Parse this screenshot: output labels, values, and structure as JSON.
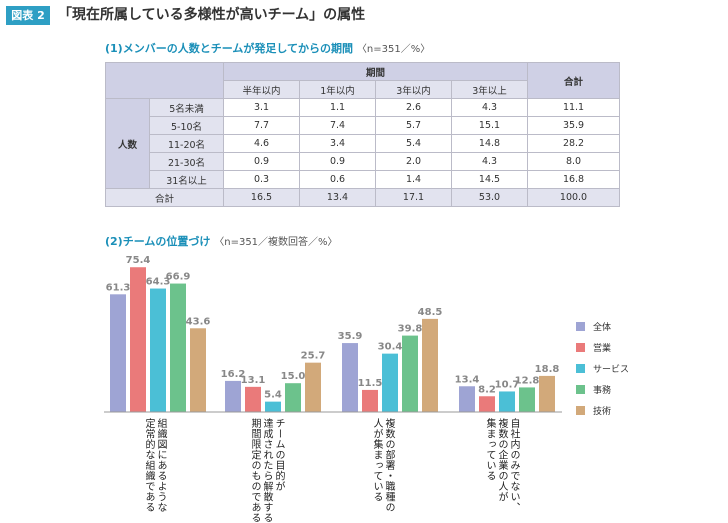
{
  "header": {
    "figure_label": "図表 2",
    "title": "「現在所属している多様性が高いチーム」の属性"
  },
  "section1": {
    "title": "(1)メンバーの人数とチームが発足してからの期間",
    "subtitle": "〈n=351／%〉"
  },
  "table": {
    "group_header": "期間",
    "total_col_header": "合計",
    "columns": [
      "半年以内",
      "1年以内",
      "3年以内",
      "3年以上"
    ],
    "row_group_label": "人数",
    "rows": [
      {
        "label": "5名未満",
        "values": [
          "3.1",
          "1.1",
          "2.6",
          "4.3"
        ],
        "total": "11.1"
      },
      {
        "label": "5-10名",
        "values": [
          "7.7",
          "7.4",
          "5.7",
          "15.1"
        ],
        "total": "35.9"
      },
      {
        "label": "11-20名",
        "values": [
          "4.6",
          "3.4",
          "5.4",
          "14.8"
        ],
        "total": "28.2"
      },
      {
        "label": "21-30名",
        "values": [
          "0.9",
          "0.9",
          "2.0",
          "4.3"
        ],
        "total": "8.0"
      },
      {
        "label": "31名以上",
        "values": [
          "0.3",
          "0.6",
          "1.4",
          "14.5"
        ],
        "total": "16.8"
      }
    ],
    "total_row": {
      "label": "合計",
      "values": [
        "16.5",
        "13.4",
        "17.1",
        "53.0"
      ],
      "total": "100.0"
    }
  },
  "section2": {
    "title": "(2)チームの位置づけ",
    "subtitle": "〈n=351／複数回答／%〉"
  },
  "chart_data": {
    "type": "bar",
    "categories": [
      "組織図にあるような\n定常的な組織である",
      "チームの目的が\n達成されたら解散する\n期間限定のものである",
      "複数の部署・職種の\n人が集まっている",
      "自社内のみでない、\n複数の企業の人が\n集まっている"
    ],
    "series": [
      {
        "name": "全体",
        "color": "#9ea4d4",
        "values": [
          61.3,
          16.2,
          35.9,
          13.4
        ]
      },
      {
        "name": "営業",
        "color": "#ea7a7a",
        "values": [
          75.4,
          13.1,
          11.5,
          8.2
        ]
      },
      {
        "name": "サービス",
        "color": "#4bbfd6",
        "values": [
          64.3,
          5.4,
          30.4,
          10.7
        ]
      },
      {
        "name": "事務",
        "color": "#6cc28c",
        "values": [
          66.9,
          15.0,
          39.8,
          12.8
        ]
      },
      {
        "name": "技術",
        "color": "#d2a97a",
        "values": [
          43.6,
          25.7,
          48.5,
          18.8
        ]
      }
    ],
    "ylim": [
      0,
      80
    ],
    "grid": false,
    "legend": "right"
  }
}
